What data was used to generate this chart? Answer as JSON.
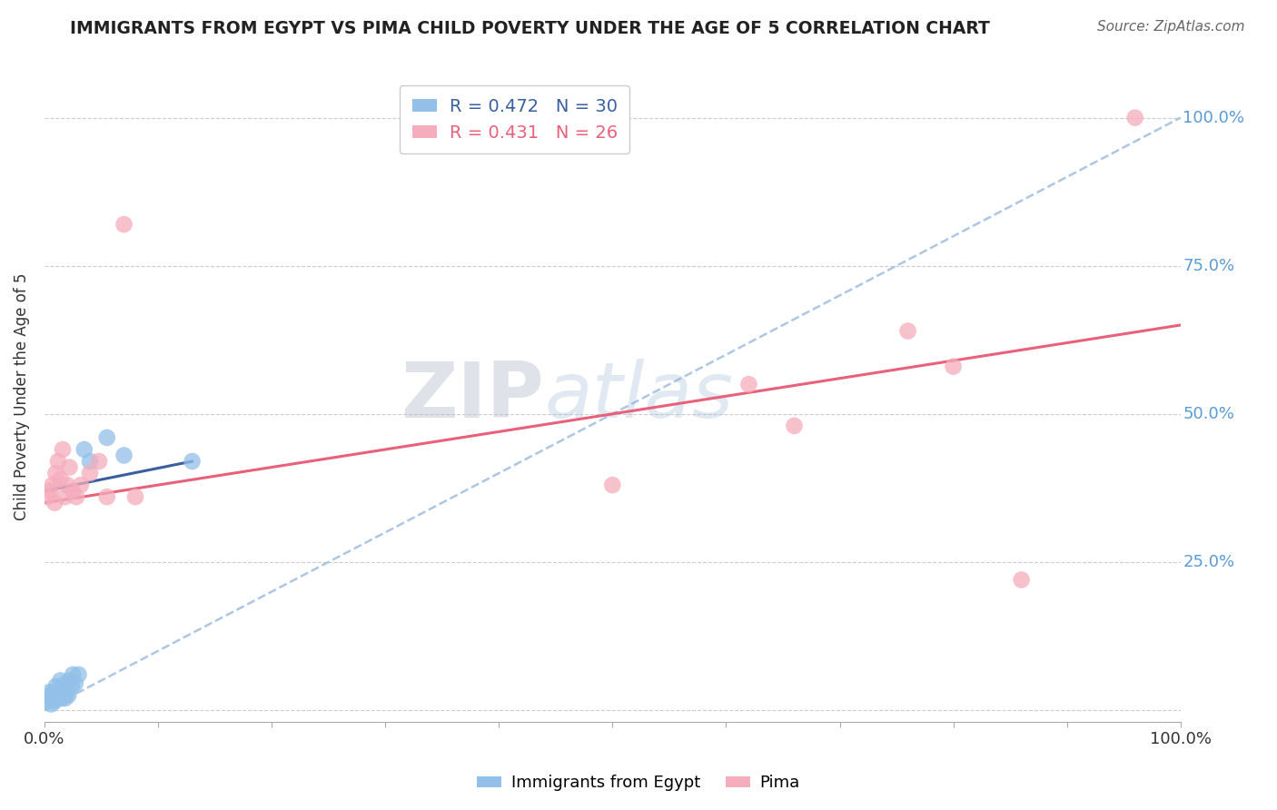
{
  "title": "IMMIGRANTS FROM EGYPT VS PIMA CHILD POVERTY UNDER THE AGE OF 5 CORRELATION CHART",
  "source": "Source: ZipAtlas.com",
  "ylabel": "Child Poverty Under the Age of 5",
  "xlim": [
    0,
    1
  ],
  "ylim": [
    -0.02,
    1.08
  ],
  "x_ticks": [
    0,
    0.1,
    0.2,
    0.3,
    0.4,
    0.5,
    0.6,
    0.7,
    0.8,
    0.9,
    1.0
  ],
  "x_tick_labels": [
    "0.0%",
    "",
    "",
    "",
    "",
    "",
    "",
    "",
    "",
    "",
    "100.0%"
  ],
  "y_ticks": [
    0.0,
    0.25,
    0.5,
    0.75,
    1.0
  ],
  "y_tick_labels": [
    "",
    "25.0%",
    "50.0%",
    "75.0%",
    "100.0%"
  ],
  "blue_R": 0.472,
  "blue_N": 30,
  "pink_R": 0.431,
  "pink_N": 26,
  "blue_label": "Immigrants from Egypt",
  "pink_label": "Pima",
  "blue_color": "#92C0E8",
  "pink_color": "#F5ACBC",
  "blue_trend_solid_color": "#3A5FA0",
  "blue_trend_dash_color": "#8BAFD8",
  "pink_trend_color": "#E8607A",
  "watermark_zip_color": "#C0C8D8",
  "watermark_atlas_color": "#B8C8E0",
  "blue_scatter_x": [
    0.002,
    0.003,
    0.004,
    0.005,
    0.006,
    0.007,
    0.008,
    0.009,
    0.01,
    0.011,
    0.012,
    0.013,
    0.014,
    0.015,
    0.016,
    0.017,
    0.018,
    0.019,
    0.02,
    0.021,
    0.022,
    0.024,
    0.025,
    0.027,
    0.03,
    0.035,
    0.04,
    0.055,
    0.07,
    0.13
  ],
  "blue_scatter_y": [
    0.02,
    0.015,
    0.03,
    0.025,
    0.01,
    0.02,
    0.03,
    0.015,
    0.04,
    0.02,
    0.025,
    0.03,
    0.05,
    0.02,
    0.04,
    0.035,
    0.02,
    0.045,
    0.03,
    0.025,
    0.05,
    0.04,
    0.06,
    0.045,
    0.06,
    0.44,
    0.42,
    0.46,
    0.43,
    0.42
  ],
  "pink_scatter_x": [
    0.003,
    0.005,
    0.007,
    0.009,
    0.01,
    0.012,
    0.014,
    0.016,
    0.018,
    0.02,
    0.022,
    0.025,
    0.028,
    0.032,
    0.04,
    0.048,
    0.055,
    0.07,
    0.08,
    0.5,
    0.62,
    0.66,
    0.76,
    0.8,
    0.86,
    0.96
  ],
  "pink_scatter_y": [
    0.36,
    0.37,
    0.38,
    0.35,
    0.4,
    0.42,
    0.39,
    0.44,
    0.36,
    0.38,
    0.41,
    0.37,
    0.36,
    0.38,
    0.4,
    0.42,
    0.36,
    0.82,
    0.36,
    0.38,
    0.55,
    0.48,
    0.64,
    0.58,
    0.22,
    1.0
  ],
  "blue_solid_trend": [
    0.0,
    0.37,
    0.13,
    0.42
  ],
  "blue_dash_trend": [
    0.0,
    0.0,
    1.0,
    1.0
  ],
  "pink_solid_trend": [
    0.0,
    0.35,
    1.0,
    0.65
  ]
}
